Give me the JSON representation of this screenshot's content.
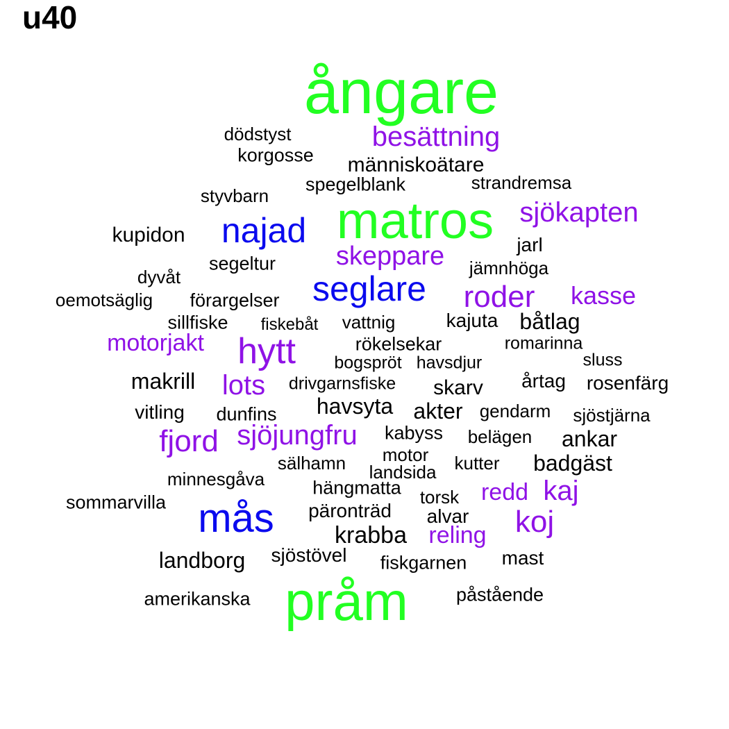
{
  "title": "u40",
  "colors": {
    "green": "#22ff22",
    "blue": "#0a0aee",
    "purple": "#8f12e6",
    "black": "#000000"
  },
  "words": [
    {
      "text": "ångare",
      "color": "green"
    },
    {
      "text": "matros",
      "color": "green"
    },
    {
      "text": "pråm",
      "color": "green"
    },
    {
      "text": "najad",
      "color": "blue"
    },
    {
      "text": "seglare",
      "color": "blue"
    },
    {
      "text": "mås",
      "color": "blue"
    },
    {
      "text": "besättning",
      "color": "purple"
    },
    {
      "text": "sjökapten",
      "color": "purple"
    },
    {
      "text": "skeppare",
      "color": "purple"
    },
    {
      "text": "roder",
      "color": "purple"
    },
    {
      "text": "kasse",
      "color": "purple"
    },
    {
      "text": "motorjakt",
      "color": "purple"
    },
    {
      "text": "hytt",
      "color": "purple"
    },
    {
      "text": "lots",
      "color": "purple"
    },
    {
      "text": "fjord",
      "color": "purple"
    },
    {
      "text": "sjöjungfru",
      "color": "purple"
    },
    {
      "text": "redd",
      "color": "purple"
    },
    {
      "text": "kaj",
      "color": "purple"
    },
    {
      "text": "koj",
      "color": "purple"
    },
    {
      "text": "reling",
      "color": "purple"
    },
    {
      "text": "dödstyst",
      "color": "black"
    },
    {
      "text": "korgosse",
      "color": "black"
    },
    {
      "text": "människoätare",
      "color": "black"
    },
    {
      "text": "spegelblank",
      "color": "black"
    },
    {
      "text": "strandremsa",
      "color": "black"
    },
    {
      "text": "styvbarn",
      "color": "black"
    },
    {
      "text": "kupidon",
      "color": "black"
    },
    {
      "text": "jarl",
      "color": "black"
    },
    {
      "text": "segeltur",
      "color": "black"
    },
    {
      "text": "jämnhöga",
      "color": "black"
    },
    {
      "text": "dyvåt",
      "color": "black"
    },
    {
      "text": "oemotsäglig",
      "color": "black"
    },
    {
      "text": "förargelser",
      "color": "black"
    },
    {
      "text": "sillfiske",
      "color": "black"
    },
    {
      "text": "fiskebåt",
      "color": "black"
    },
    {
      "text": "vattnig",
      "color": "black"
    },
    {
      "text": "kajuta",
      "color": "black"
    },
    {
      "text": "båtlag",
      "color": "black"
    },
    {
      "text": "rökelsekar",
      "color": "black"
    },
    {
      "text": "romarinna",
      "color": "black"
    },
    {
      "text": "bogspröt",
      "color": "black"
    },
    {
      "text": "havsdjur",
      "color": "black"
    },
    {
      "text": "sluss",
      "color": "black"
    },
    {
      "text": "makrill",
      "color": "black"
    },
    {
      "text": "drivgarnsfiske",
      "color": "black"
    },
    {
      "text": "skarv",
      "color": "black"
    },
    {
      "text": "årtag",
      "color": "black"
    },
    {
      "text": "rosenfärg",
      "color": "black"
    },
    {
      "text": "vitling",
      "color": "black"
    },
    {
      "text": "dunfins",
      "color": "black"
    },
    {
      "text": "havsyta",
      "color": "black"
    },
    {
      "text": "akter",
      "color": "black"
    },
    {
      "text": "gendarm",
      "color": "black"
    },
    {
      "text": "sjöstjärna",
      "color": "black"
    },
    {
      "text": "kabyss",
      "color": "black"
    },
    {
      "text": "belägen",
      "color": "black"
    },
    {
      "text": "ankar",
      "color": "black"
    },
    {
      "text": "motor",
      "color": "black"
    },
    {
      "text": "sälhamn",
      "color": "black"
    },
    {
      "text": "kutter",
      "color": "black"
    },
    {
      "text": "badgäst",
      "color": "black"
    },
    {
      "text": "landsida",
      "color": "black"
    },
    {
      "text": "minnesgåva",
      "color": "black"
    },
    {
      "text": "hängmatta",
      "color": "black"
    },
    {
      "text": "sommarvilla",
      "color": "black"
    },
    {
      "text": "torsk",
      "color": "black"
    },
    {
      "text": "päronträd",
      "color": "black"
    },
    {
      "text": "alvar",
      "color": "black"
    },
    {
      "text": "krabba",
      "color": "black"
    },
    {
      "text": "landborg",
      "color": "black"
    },
    {
      "text": "sjöstövel",
      "color": "black"
    },
    {
      "text": "fiskgarnen",
      "color": "black"
    },
    {
      "text": "mast",
      "color": "black"
    },
    {
      "text": "amerikanska",
      "color": "black"
    },
    {
      "text": "påstående",
      "color": "black"
    }
  ]
}
